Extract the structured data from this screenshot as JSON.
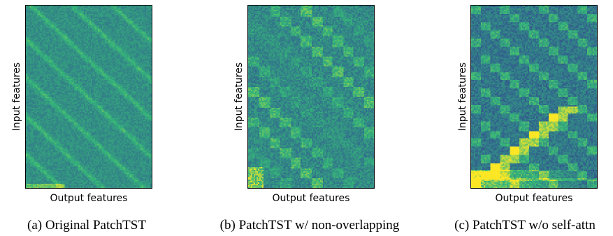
{
  "chart_data": [
    {
      "type": "heatmap",
      "caption": "(a) Original PatchTST",
      "xlabel": "Output features",
      "ylabel": "Input features",
      "pattern": "smooth diagonal bands",
      "colormap": [
        "#440154",
        "#31688e",
        "#35b779",
        "#fde725"
      ]
    },
    {
      "type": "heatmap",
      "caption": "(b) PatchTST w/ non-overlapping",
      "xlabel": "Output features",
      "ylabel": "Input features",
      "pattern": "blocky diagonal bands",
      "colormap": [
        "#440154",
        "#31688e",
        "#35b779",
        "#fde725"
      ]
    },
    {
      "type": "heatmap",
      "caption": "(c) PatchTST w/o self-attn",
      "xlabel": "Output features",
      "ylabel": "Input features",
      "pattern": "block staircase with strong lower rows",
      "colormap": [
        "#440154",
        "#31688e",
        "#35b779",
        "#fde725"
      ]
    }
  ]
}
